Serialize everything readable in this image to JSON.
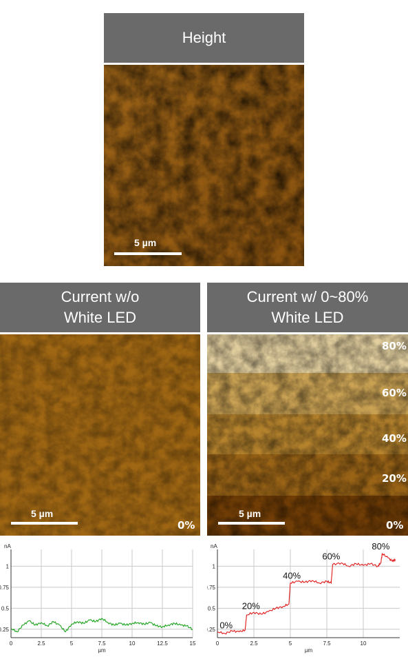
{
  "height_panel": {
    "title": "Height",
    "scalebar": "5 µm"
  },
  "current_off_panel": {
    "title_line1": "Current w/o",
    "title_line2": "White LED",
    "scalebar": "5 µm",
    "percent": "0%"
  },
  "current_on_panel": {
    "title_line1": "Current w/ 0~80%",
    "title_line2": "White LED",
    "scalebar": "5 µm",
    "percents": [
      "80%",
      "60%",
      "40%",
      "20%",
      "0%"
    ]
  },
  "colors": {
    "header_bg": "#6a6a6a",
    "afm_dark": "#5a2f00",
    "afm_mid": "#a86a10",
    "afm_light": "#f4e2b0",
    "series_off": "#1aa31a",
    "series_on": "#e01818"
  },
  "chart_data": [
    {
      "type": "line",
      "ylabel": "nA",
      "xlabel": "µm",
      "xlim": [
        0,
        15
      ],
      "ylim": [
        0.15,
        1.2
      ],
      "xticks": [
        "0",
        "2.5",
        "5",
        "7.5",
        "10",
        "12.5",
        "15"
      ],
      "yticks": [
        "0.25",
        "0.5",
        "0.75",
        "1"
      ],
      "series": [
        {
          "values": {
            "x": [
              0,
              0.5,
              1,
              1.5,
              2,
              2.5,
              3,
              3.5,
              4,
              4.5,
              5,
              5.5,
              6,
              6.5,
              7,
              7.5,
              8,
              8.5,
              9,
              9.5,
              10,
              10.5,
              11,
              11.5,
              12,
              12.5,
              13,
              13.5,
              14,
              14.5,
              15
            ],
            "y": [
              0.26,
              0.22,
              0.3,
              0.35,
              0.3,
              0.33,
              0.29,
              0.34,
              0.3,
              0.22,
              0.31,
              0.34,
              0.32,
              0.36,
              0.34,
              0.38,
              0.33,
              0.3,
              0.32,
              0.3,
              0.32,
              0.33,
              0.31,
              0.33,
              0.29,
              0.28,
              0.3,
              0.32,
              0.3,
              0.29,
              0.25
            ]
          }
        }
      ]
    },
    {
      "type": "line",
      "ylabel": "nA",
      "xlabel": "µm",
      "xlim": [
        0,
        12.5
      ],
      "ylim": [
        0.15,
        1.2
      ],
      "xticks": [
        "0",
        "2.5",
        "5",
        "7.5",
        "10"
      ],
      "yticks": [
        "0.25",
        "0.5",
        "0.75",
        "1"
      ],
      "annotations": [
        "0%",
        "20%",
        "40%",
        "60%",
        "80%"
      ],
      "annotation_x": [
        0.6,
        2.3,
        5.1,
        7.8,
        11.2
      ],
      "annotation_y": [
        0.26,
        0.49,
        0.85,
        1.08,
        1.2
      ],
      "series": [
        {
          "values": {
            "x": [
              0,
              0.5,
              1,
              1.5,
              1.9,
              2.0,
              2.5,
              3,
              3.5,
              4,
              4.5,
              4.9,
              5.0,
              5.5,
              6,
              6.5,
              7,
              7.5,
              7.8,
              7.9,
              8.5,
              9,
              9.5,
              10,
              10.5,
              11,
              11.2,
              11.3,
              11.7,
              12,
              12.2
            ],
            "y": [
              0.22,
              0.2,
              0.23,
              0.22,
              0.24,
              0.42,
              0.45,
              0.43,
              0.46,
              0.5,
              0.52,
              0.55,
              0.8,
              0.82,
              0.81,
              0.83,
              0.8,
              0.82,
              0.8,
              1.02,
              1.04,
              1.0,
              1.03,
              1.01,
              1.03,
              1.0,
              1.04,
              1.15,
              1.1,
              1.06,
              1.08
            ]
          }
        }
      ]
    }
  ]
}
